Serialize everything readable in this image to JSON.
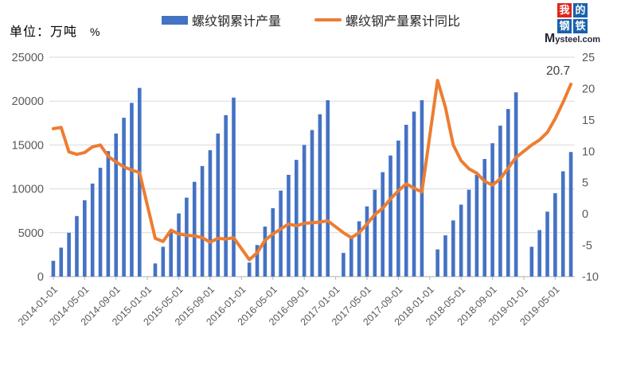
{
  "header": {
    "unit_label": "单位：万吨",
    "unit_percent": "%",
    "logo": {
      "chars": [
        "我",
        "的",
        "钢",
        "铁"
      ],
      "domain_m": "M",
      "domain_rest": "ysteel.com",
      "red": "#E0251B",
      "blue": "#1961AC"
    }
  },
  "legend": [
    {
      "label": "螺纹钢累计产量",
      "type": "bar",
      "color": "#4472C4"
    },
    {
      "label": "螺纹钢产量累计同比",
      "type": "line",
      "color": "#ED7D31"
    }
  ],
  "colors": {
    "bar": "#4472C4",
    "line": "#ED7D31",
    "grid": "#D9D9D9",
    "axis": "#BFBFBF",
    "axis_text": "#595959",
    "annotation_text": "#404040"
  },
  "chart_data": {
    "type": "combo",
    "title": "",
    "x": [
      "2014-01",
      "2014-02",
      "2014-03",
      "2014-04",
      "2014-05",
      "2014-06",
      "2014-07",
      "2014-08",
      "2014-09",
      "2014-10",
      "2014-11",
      "2014-12",
      "2015-01",
      "2015-02",
      "2015-03",
      "2015-04",
      "2015-05",
      "2015-06",
      "2015-07",
      "2015-08",
      "2015-09",
      "2015-10",
      "2015-11",
      "2015-12",
      "2016-01",
      "2016-02",
      "2016-03",
      "2016-04",
      "2016-05",
      "2016-06",
      "2016-07",
      "2016-08",
      "2016-09",
      "2016-10",
      "2016-11",
      "2016-12",
      "2017-01",
      "2017-02",
      "2017-03",
      "2017-04",
      "2017-05",
      "2017-06",
      "2017-07",
      "2017-08",
      "2017-09",
      "2017-10",
      "2017-11",
      "2017-12",
      "2018-01",
      "2018-02",
      "2018-03",
      "2018-04",
      "2018-05",
      "2018-06",
      "2018-07",
      "2018-08",
      "2018-09",
      "2018-10",
      "2018-11",
      "2018-12",
      "2019-01",
      "2019-02",
      "2019-03",
      "2019-04",
      "2019-05",
      "2019-06",
      "2019-07"
    ],
    "series": [
      {
        "name": "螺纹钢累计产量",
        "chart_type": "bar",
        "axis": "left",
        "unit": "万吨",
        "color": "#4472C4",
        "values": [
          1800,
          3300,
          5000,
          6900,
          8700,
          10600,
          12400,
          14300,
          16300,
          18100,
          19800,
          21500,
          null,
          1500,
          3400,
          5300,
          7200,
          9000,
          10800,
          12600,
          14400,
          16300,
          18400,
          20400,
          null,
          1600,
          3600,
          5700,
          7800,
          9800,
          11600,
          13300,
          15000,
          16700,
          18500,
          20100,
          null,
          2700,
          4400,
          6300,
          8000,
          9900,
          11900,
          13800,
          15500,
          17300,
          18800,
          20100,
          null,
          3100,
          4700,
          6400,
          8200,
          9900,
          11600,
          13400,
          15200,
          17200,
          19100,
          21000,
          null,
          3400,
          5300,
          7400,
          9500,
          12000,
          14200
        ]
      },
      {
        "name": "螺纹钢产量累计同比",
        "chart_type": "line",
        "axis": "right",
        "unit": "%",
        "color": "#ED7D31",
        "values": [
          13.6,
          13.8,
          9.9,
          9.5,
          9.8,
          10.7,
          11.0,
          9.2,
          8.3,
          7.5,
          7.0,
          6.6,
          null,
          -3.9,
          -4.4,
          -2.6,
          -3.2,
          -3.4,
          -3.5,
          -3.8,
          -4.5,
          -3.9,
          -4.0,
          -3.8,
          null,
          -7.3,
          -6.2,
          -4.2,
          -3.2,
          -2.4,
          -1.6,
          -1.9,
          -1.5,
          -1.4,
          -1.3,
          -1.1,
          null,
          -3.0,
          -3.8,
          -3.0,
          -1.6,
          -0.1,
          0.9,
          2.4,
          3.7,
          4.8,
          4.1,
          3.5,
          null,
          21.3,
          17.0,
          11.0,
          8.5,
          7.2,
          6.5,
          5.2,
          4.6,
          5.6,
          7.3,
          9.0,
          null,
          11.0,
          11.8,
          13.0,
          15.2,
          17.8,
          20.7
        ]
      }
    ],
    "left_axis": {
      "min": 0,
      "max": 25000,
      "step": 5000,
      "tick_labels": [
        "0",
        "5000",
        "10000",
        "15000",
        "20000",
        "25000"
      ]
    },
    "right_axis": {
      "min": -10,
      "max": 25,
      "step": 5,
      "tick_labels": [
        "-10",
        "-5",
        "0",
        "5",
        "10",
        "15",
        "20",
        "25"
      ]
    },
    "x_ticks": [
      {
        "index": 0,
        "label": "2014-01-01"
      },
      {
        "index": 4,
        "label": "2014-05-01"
      },
      {
        "index": 8,
        "label": "2014-09-01"
      },
      {
        "index": 12,
        "label": "2015-01-01"
      },
      {
        "index": 16,
        "label": "2015-05-01"
      },
      {
        "index": 20,
        "label": "2015-09-01"
      },
      {
        "index": 24,
        "label": "2016-01-01"
      },
      {
        "index": 28,
        "label": "2016-05-01"
      },
      {
        "index": 32,
        "label": "2016-09-01"
      },
      {
        "index": 36,
        "label": "2017-01-01"
      },
      {
        "index": 40,
        "label": "2017-05-01"
      },
      {
        "index": 44,
        "label": "2017-09-01"
      },
      {
        "index": 48,
        "label": "2018-01-01"
      },
      {
        "index": 52,
        "label": "2018-05-01"
      },
      {
        "index": 56,
        "label": "2018-09-01"
      },
      {
        "index": 60,
        "label": "2019-01-01"
      },
      {
        "index": 64,
        "label": "2019-05-01"
      }
    ],
    "annotation": {
      "text": "20.7",
      "x_index": 66,
      "series": "螺纹钢产量累计同比"
    },
    "grid": true,
    "legend_position": "top"
  }
}
